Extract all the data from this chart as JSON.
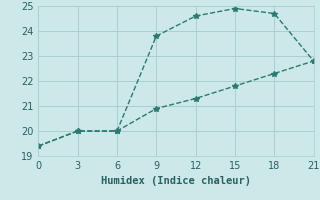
{
  "line1_x": [
    0,
    3,
    6,
    9,
    12,
    15,
    18,
    21
  ],
  "line1_y": [
    19.4,
    20.0,
    20.0,
    23.8,
    24.6,
    24.9,
    24.7,
    22.8
  ],
  "line2_x": [
    0,
    3,
    6,
    9,
    12,
    15,
    18,
    21
  ],
  "line2_y": [
    19.4,
    20.0,
    20.0,
    20.9,
    21.3,
    21.8,
    22.3,
    22.8
  ],
  "line_color": "#2a7a72",
  "marker": "*",
  "marker_size": 4,
  "xlabel": "Humidex (Indice chaleur)",
  "xlim": [
    0,
    21
  ],
  "ylim": [
    19,
    25
  ],
  "xticks": [
    0,
    3,
    6,
    9,
    12,
    15,
    18,
    21
  ],
  "yticks": [
    19,
    20,
    21,
    22,
    23,
    24,
    25
  ],
  "background_color": "#cce8e8",
  "grid_color": "#aacfcf",
  "font_color": "#2a6060",
  "xlabel_fontsize": 7.5,
  "tick_fontsize": 7,
  "line_width": 1.0,
  "linestyle": "--"
}
